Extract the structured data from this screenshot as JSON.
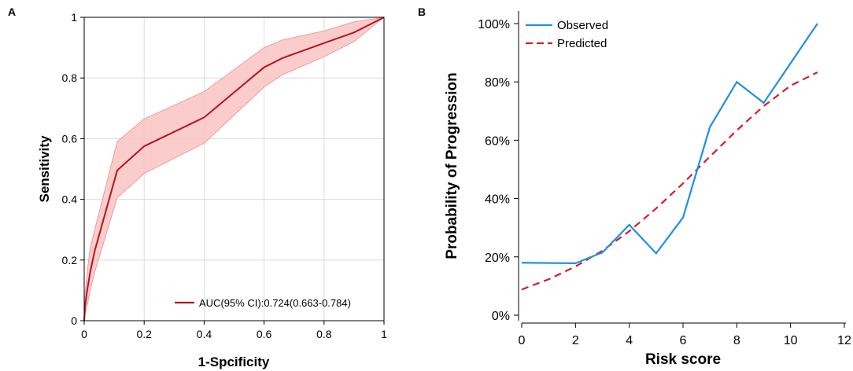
{
  "chart_data": [
    {
      "panel": "A",
      "type": "line",
      "xlabel": "1-Spcificity",
      "ylabel": "Sensitivity",
      "xlim": [
        0,
        1
      ],
      "ylim": [
        0,
        1
      ],
      "xticks": [
        "0",
        "0.2",
        "0.4",
        "0.6",
        "0.8",
        "1"
      ],
      "yticks": [
        "0",
        "0.2",
        "0.4",
        "0.6",
        "0.8",
        "1"
      ],
      "grid": true,
      "legend_position": "bottom-right",
      "colors": {
        "line": "#b5141f",
        "band_fill": "#f9c3c3",
        "band_edge": "#f08a8a",
        "grid": "#dcdcdc"
      },
      "series": [
        {
          "name": "AUC(95% CI):0.724(0.663-0.784)",
          "x": [
            0,
            0.003,
            0.01,
            0.02,
            0.035,
            0.11,
            0.2,
            0.4,
            0.6,
            0.66,
            0.8,
            0.9,
            1
          ],
          "y": [
            0,
            0.05,
            0.1,
            0.16,
            0.23,
            0.495,
            0.575,
            0.67,
            0.835,
            0.865,
            0.915,
            0.95,
            1
          ],
          "lower": [
            0,
            0.02,
            0.05,
            0.1,
            0.16,
            0.405,
            0.485,
            0.585,
            0.77,
            0.81,
            0.87,
            0.92,
            1
          ],
          "upper": [
            0,
            0.09,
            0.16,
            0.24,
            0.3,
            0.59,
            0.665,
            0.755,
            0.9,
            0.925,
            0.955,
            0.985,
            1
          ]
        }
      ]
    },
    {
      "panel": "B",
      "type": "line",
      "xlabel": "Risk score",
      "ylabel": "Probability of Progression",
      "xlim": [
        0,
        12
      ],
      "ylim": [
        0,
        100
      ],
      "xticks": [
        "0",
        "2",
        "4",
        "6",
        "8",
        "10",
        "12"
      ],
      "yticks": [
        "0%",
        "20%",
        "40%",
        "60%",
        "80%",
        "100%"
      ],
      "grid": false,
      "legend_position": "top-left",
      "series": [
        {
          "name": "Observed",
          "color": "#1f8fe6",
          "style": "solid",
          "x": [
            0,
            2,
            3,
            4,
            5,
            6,
            7,
            8,
            9,
            11
          ],
          "y": [
            18,
            17.8,
            21.5,
            31,
            21.2,
            33.5,
            64.5,
            80,
            72.8,
            100
          ]
        },
        {
          "name": "Predicted",
          "color": "#d21e2b",
          "style": "dashed",
          "x": [
            0,
            1,
            2,
            3,
            4,
            5,
            6,
            7,
            8,
            9,
            10,
            11
          ],
          "y": [
            8.8,
            12.3,
            16.7,
            22.1,
            28.8,
            36.6,
            45.2,
            54.4,
            63.4,
            71.7,
            78.7,
            83.3
          ]
        }
      ]
    }
  ]
}
